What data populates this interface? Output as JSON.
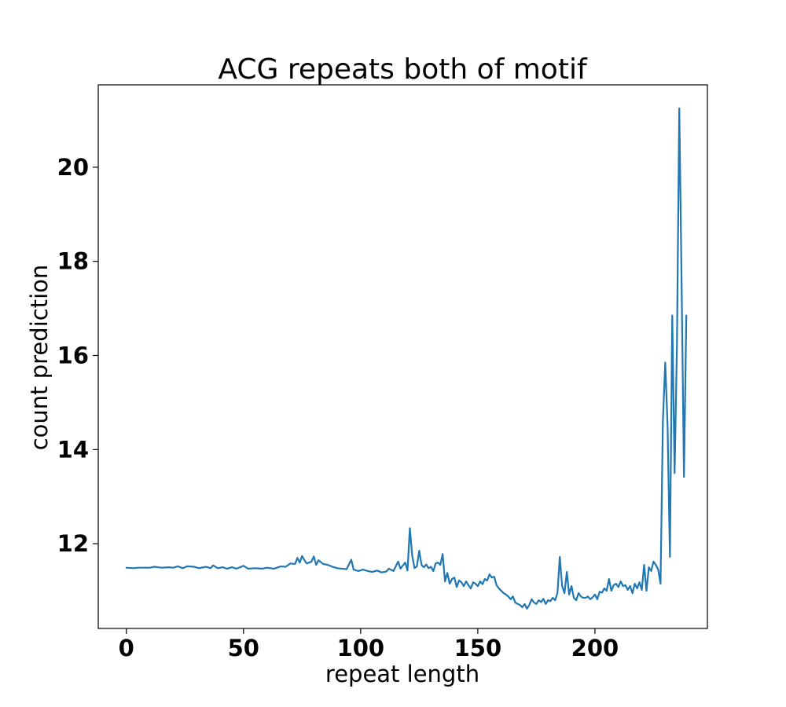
{
  "chart_data": {
    "type": "line",
    "title": "ACG repeats both of motif",
    "xlabel": "repeat length",
    "ylabel": "count prediction",
    "xlim": [
      -12,
      248
    ],
    "ylim": [
      10.2,
      21.75
    ],
    "xticks": [
      0,
      50,
      100,
      150,
      200
    ],
    "yticks": [
      12,
      14,
      16,
      18,
      20
    ],
    "grid": false,
    "legend": "none",
    "colors": {
      "series": "#1f77b4"
    },
    "series": [
      {
        "points": [
          [
            0,
            11.49
          ],
          [
            3,
            11.48
          ],
          [
            5,
            11.49
          ],
          [
            8,
            11.49
          ],
          [
            10,
            11.49
          ],
          [
            12,
            11.51
          ],
          [
            15,
            11.49
          ],
          [
            18,
            11.5
          ],
          [
            20,
            11.49
          ],
          [
            22,
            11.52
          ],
          [
            24,
            11.48
          ],
          [
            26,
            11.52
          ],
          [
            29,
            11.51
          ],
          [
            31,
            11.48
          ],
          [
            34,
            11.51
          ],
          [
            36,
            11.48
          ],
          [
            37,
            11.54
          ],
          [
            39,
            11.48
          ],
          [
            41,
            11.5
          ],
          [
            43,
            11.47
          ],
          [
            45,
            11.5
          ],
          [
            47,
            11.47
          ],
          [
            50,
            11.53
          ],
          [
            52,
            11.47
          ],
          [
            55,
            11.48
          ],
          [
            58,
            11.47
          ],
          [
            60,
            11.49
          ],
          [
            63,
            11.47
          ],
          [
            66,
            11.52
          ],
          [
            68,
            11.51
          ],
          [
            70,
            11.58
          ],
          [
            72,
            11.57
          ],
          [
            73,
            11.7
          ],
          [
            74,
            11.6
          ],
          [
            75,
            11.74
          ],
          [
            76,
            11.65
          ],
          [
            77,
            11.58
          ],
          [
            79,
            11.62
          ],
          [
            80,
            11.73
          ],
          [
            81,
            11.55
          ],
          [
            82,
            11.65
          ],
          [
            84,
            11.57
          ],
          [
            86,
            11.55
          ],
          [
            88,
            11.51
          ],
          [
            90,
            11.48
          ],
          [
            92,
            11.47
          ],
          [
            94,
            11.46
          ],
          [
            96,
            11.66
          ],
          [
            97,
            11.45
          ],
          [
            99,
            11.42
          ],
          [
            101,
            11.45
          ],
          [
            103,
            11.42
          ],
          [
            105,
            11.4
          ],
          [
            107,
            11.43
          ],
          [
            109,
            11.39
          ],
          [
            111,
            11.41
          ],
          [
            112,
            11.47
          ],
          [
            114,
            11.42
          ],
          [
            116,
            11.62
          ],
          [
            117,
            11.47
          ],
          [
            119,
            11.6
          ],
          [
            120,
            11.43
          ],
          [
            121,
            12.33
          ],
          [
            122,
            11.75
          ],
          [
            123,
            11.48
          ],
          [
            124,
            11.52
          ],
          [
            125,
            11.85
          ],
          [
            126,
            11.55
          ],
          [
            127,
            11.5
          ],
          [
            128,
            11.56
          ],
          [
            129,
            11.48
          ],
          [
            130,
            11.51
          ],
          [
            131,
            11.42
          ],
          [
            132,
            11.58
          ],
          [
            133,
            11.6
          ],
          [
            134,
            11.55
          ],
          [
            135,
            11.78
          ],
          [
            136,
            11.2
          ],
          [
            137,
            11.38
          ],
          [
            138,
            11.15
          ],
          [
            139,
            11.25
          ],
          [
            140,
            11.28
          ],
          [
            141,
            11.08
          ],
          [
            142,
            11.22
          ],
          [
            143,
            11.18
          ],
          [
            144,
            11.1
          ],
          [
            145,
            11.2
          ],
          [
            146,
            11.12
          ],
          [
            147,
            11.05
          ],
          [
            148,
            11.18
          ],
          [
            149,
            11.15
          ],
          [
            150,
            11.1
          ],
          [
            151,
            11.2
          ],
          [
            152,
            11.14
          ],
          [
            153,
            11.25
          ],
          [
            154,
            11.22
          ],
          [
            155,
            11.35
          ],
          [
            156,
            11.28
          ],
          [
            157,
            11.3
          ],
          [
            158,
            11.12
          ],
          [
            159,
            11.05
          ],
          [
            160,
            11.0
          ],
          [
            161,
            10.95
          ],
          [
            162,
            10.92
          ],
          [
            163,
            10.88
          ],
          [
            164,
            10.82
          ],
          [
            165,
            10.88
          ],
          [
            166,
            10.75
          ],
          [
            167,
            10.72
          ],
          [
            168,
            10.7
          ],
          [
            169,
            10.65
          ],
          [
            170,
            10.72
          ],
          [
            171,
            10.62
          ],
          [
            172,
            10.7
          ],
          [
            173,
            10.82
          ],
          [
            174,
            10.75
          ],
          [
            175,
            10.72
          ],
          [
            176,
            10.8
          ],
          [
            177,
            10.76
          ],
          [
            178,
            10.83
          ],
          [
            179,
            10.72
          ],
          [
            180,
            10.8
          ],
          [
            181,
            10.78
          ],
          [
            182,
            10.85
          ],
          [
            183,
            10.8
          ],
          [
            184,
            10.95
          ],
          [
            185,
            11.72
          ],
          [
            186,
            11.1
          ],
          [
            187,
            10.95
          ],
          [
            188,
            11.4
          ],
          [
            189,
            10.92
          ],
          [
            190,
            11.1
          ],
          [
            191,
            10.85
          ],
          [
            192,
            10.8
          ],
          [
            193,
            10.95
          ],
          [
            194,
            10.88
          ],
          [
            195,
            10.85
          ],
          [
            196,
            10.85
          ],
          [
            197,
            10.88
          ],
          [
            198,
            10.82
          ],
          [
            199,
            10.86
          ],
          [
            200,
            10.92
          ],
          [
            201,
            10.82
          ],
          [
            202,
            10.98
          ],
          [
            203,
            10.96
          ],
          [
            204,
            11.05
          ],
          [
            205,
            11.0
          ],
          [
            206,
            11.25
          ],
          [
            207,
            11.0
          ],
          [
            208,
            11.12
          ],
          [
            209,
            11.15
          ],
          [
            210,
            11.08
          ],
          [
            211,
            11.2
          ],
          [
            212,
            11.1
          ],
          [
            213,
            11.12
          ],
          [
            214,
            11.02
          ],
          [
            215,
            11.1
          ],
          [
            216,
            10.95
          ],
          [
            217,
            11.15
          ],
          [
            218,
            11.05
          ],
          [
            219,
            11.18
          ],
          [
            220,
            11.02
          ],
          [
            221,
            11.55
          ],
          [
            222,
            11.0
          ],
          [
            223,
            11.5
          ],
          [
            224,
            11.42
          ],
          [
            225,
            11.62
          ],
          [
            226,
            11.55
          ],
          [
            227,
            11.45
          ],
          [
            228,
            11.15
          ],
          [
            229,
            14.6
          ],
          [
            230,
            15.85
          ],
          [
            231,
            14.5
          ],
          [
            232,
            11.72
          ],
          [
            233,
            16.85
          ],
          [
            234,
            13.5
          ],
          [
            235,
            16.2
          ],
          [
            236,
            21.25
          ],
          [
            237,
            17.5
          ],
          [
            238,
            13.42
          ],
          [
            239,
            16.85
          ]
        ]
      }
    ]
  }
}
